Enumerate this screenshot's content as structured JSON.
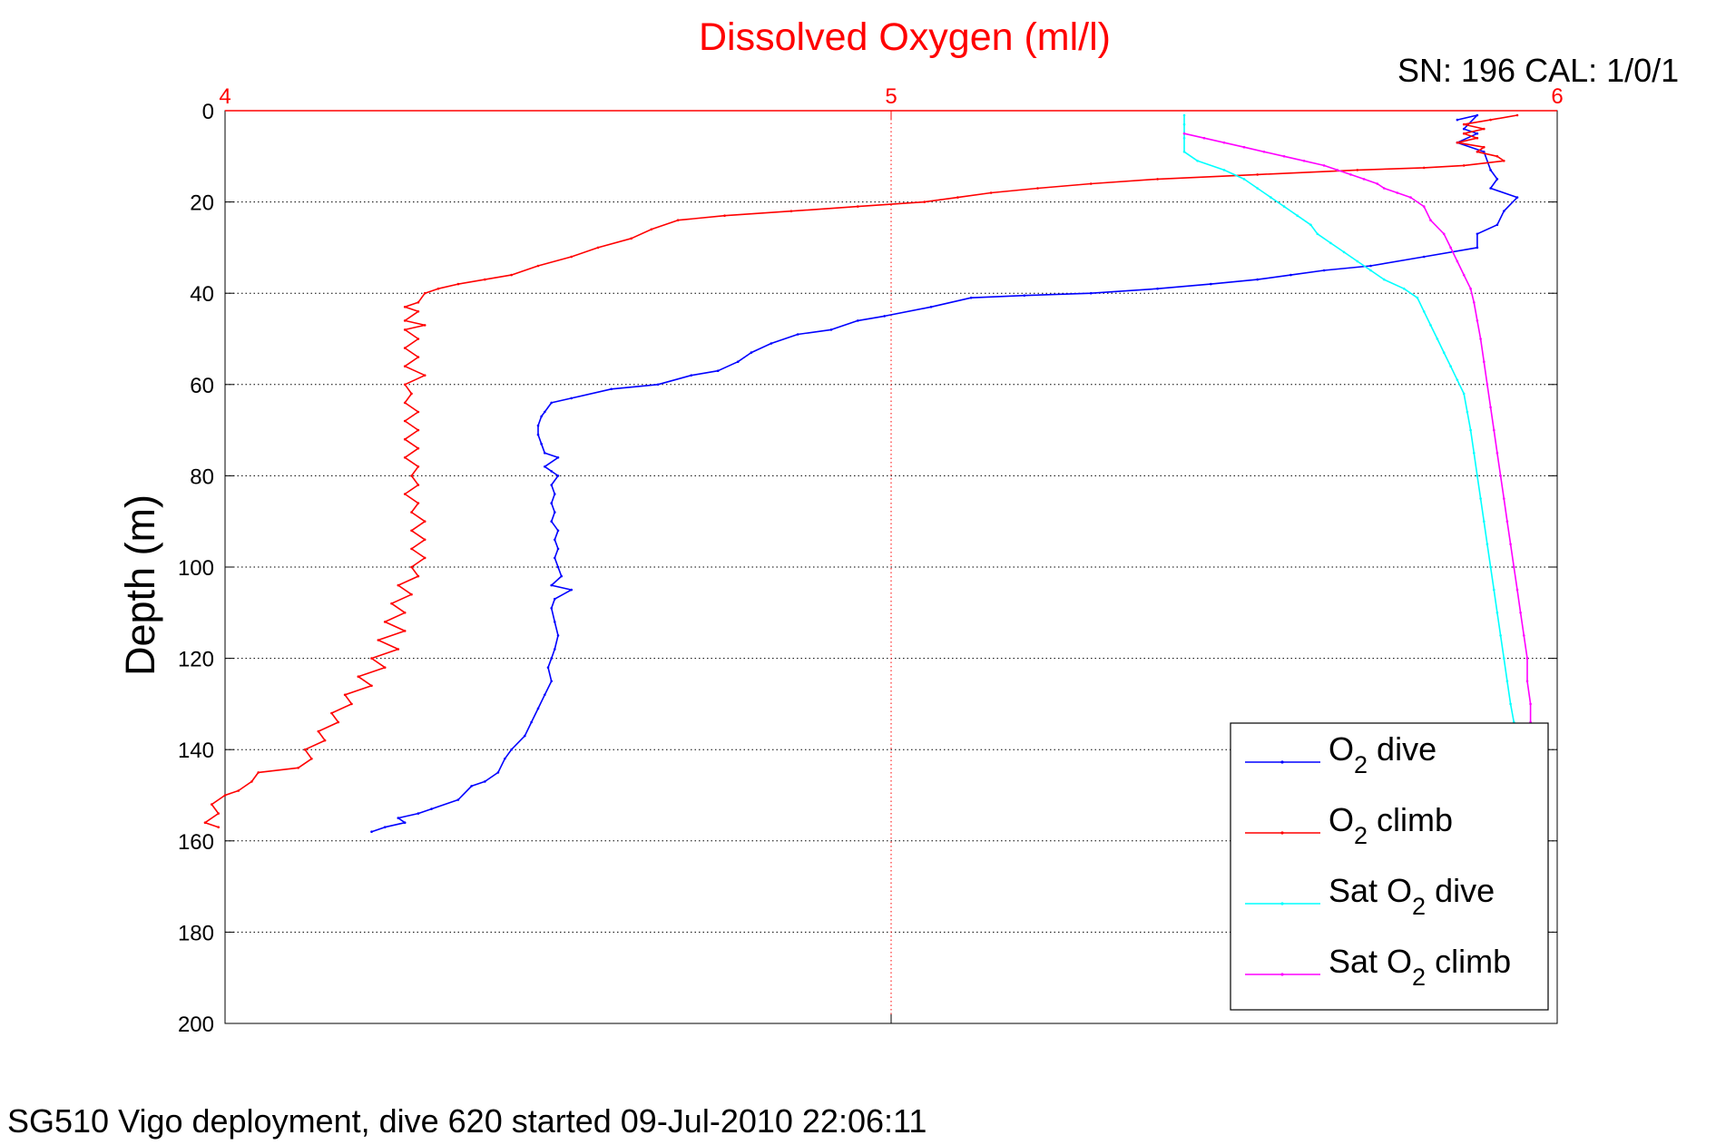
{
  "chart_data": {
    "type": "line",
    "title": "Dissolved Oxygen (ml/l)",
    "title_color": "#ff0000",
    "annotation_top_right": "SN: 196  CAL: 1/0/1",
    "footer": "SG510 Vigo deployment, dive 620 started 09-Jul-2010 22:06:11",
    "xlabel": "",
    "ylabel": "Depth (m)",
    "x_axis_position": "top",
    "x_axis_color": "#ff0000",
    "xlim": [
      4,
      6
    ],
    "ylim": [
      0,
      200
    ],
    "y_reversed": true,
    "xticks": [
      4,
      5,
      6
    ],
    "yticks": [
      0,
      20,
      40,
      60,
      80,
      100,
      120,
      140,
      160,
      180,
      200
    ],
    "grid": true,
    "legend_position": "bottom-right",
    "series": [
      {
        "legend_main": "O",
        "legend_sub": "2",
        "legend_tail": " dive",
        "color": "#0000ff",
        "points": [
          [
            5.85,
            2
          ],
          [
            5.88,
            1
          ],
          [
            5.86,
            4
          ],
          [
            5.88,
            5
          ],
          [
            5.85,
            7
          ],
          [
            5.89,
            9
          ],
          [
            5.9,
            13
          ],
          [
            5.91,
            15
          ],
          [
            5.9,
            17
          ],
          [
            5.94,
            19
          ],
          [
            5.92,
            22
          ],
          [
            5.91,
            25
          ],
          [
            5.88,
            27
          ],
          [
            5.88,
            30
          ],
          [
            5.8,
            32
          ],
          [
            5.72,
            34
          ],
          [
            5.65,
            35
          ],
          [
            5.6,
            36
          ],
          [
            5.55,
            37
          ],
          [
            5.48,
            38
          ],
          [
            5.4,
            39
          ],
          [
            5.3,
            40
          ],
          [
            5.2,
            40.5
          ],
          [
            5.12,
            41
          ],
          [
            5.06,
            43
          ],
          [
            4.99,
            45
          ],
          [
            4.95,
            46
          ],
          [
            4.91,
            48
          ],
          [
            4.86,
            49
          ],
          [
            4.82,
            51
          ],
          [
            4.79,
            53
          ],
          [
            4.77,
            55
          ],
          [
            4.74,
            57
          ],
          [
            4.7,
            58
          ],
          [
            4.65,
            60
          ],
          [
            4.58,
            61
          ],
          [
            4.52,
            63
          ],
          [
            4.49,
            64
          ],
          [
            4.48,
            66
          ],
          [
            4.475,
            67
          ],
          [
            4.47,
            69
          ],
          [
            4.47,
            71
          ],
          [
            4.475,
            73
          ],
          [
            4.48,
            75
          ],
          [
            4.5,
            76
          ],
          [
            4.48,
            78
          ],
          [
            4.49,
            79
          ],
          [
            4.5,
            80
          ],
          [
            4.49,
            82
          ],
          [
            4.495,
            84
          ],
          [
            4.49,
            86
          ],
          [
            4.495,
            88
          ],
          [
            4.49,
            90
          ],
          [
            4.5,
            92
          ],
          [
            4.495,
            94
          ],
          [
            4.5,
            96
          ],
          [
            4.495,
            98
          ],
          [
            4.5,
            100
          ],
          [
            4.505,
            102
          ],
          [
            4.49,
            104
          ],
          [
            4.52,
            105
          ],
          [
            4.495,
            107
          ],
          [
            4.49,
            109
          ],
          [
            4.495,
            112
          ],
          [
            4.5,
            115
          ],
          [
            4.495,
            118
          ],
          [
            4.49,
            120
          ],
          [
            4.485,
            122
          ],
          [
            4.49,
            125
          ],
          [
            4.48,
            128
          ],
          [
            4.47,
            131
          ],
          [
            4.46,
            134
          ],
          [
            4.45,
            137
          ],
          [
            4.43,
            140
          ],
          [
            4.42,
            142
          ],
          [
            4.41,
            145
          ],
          [
            4.39,
            147
          ],
          [
            4.37,
            148
          ],
          [
            4.35,
            151
          ],
          [
            4.31,
            153
          ],
          [
            4.29,
            154
          ],
          [
            4.26,
            155
          ],
          [
            4.27,
            156
          ],
          [
            4.24,
            157
          ],
          [
            4.22,
            158
          ]
        ]
      },
      {
        "legend_main": "O",
        "legend_sub": "2",
        "legend_tail": " climb",
        "color": "#ff0000",
        "points": [
          [
            5.94,
            1
          ],
          [
            5.9,
            2
          ],
          [
            5.86,
            3
          ],
          [
            5.89,
            4
          ],
          [
            5.86,
            5
          ],
          [
            5.88,
            6
          ],
          [
            5.85,
            7
          ],
          [
            5.89,
            8
          ],
          [
            5.88,
            9
          ],
          [
            5.91,
            10
          ],
          [
            5.92,
            11
          ],
          [
            5.86,
            12
          ],
          [
            5.8,
            12.5
          ],
          [
            5.7,
            13
          ],
          [
            5.55,
            14
          ],
          [
            5.4,
            15
          ],
          [
            5.3,
            16
          ],
          [
            5.22,
            17
          ],
          [
            5.15,
            18
          ],
          [
            5.1,
            19
          ],
          [
            5.05,
            20
          ],
          [
            4.95,
            21
          ],
          [
            4.85,
            22
          ],
          [
            4.75,
            23
          ],
          [
            4.68,
            24
          ],
          [
            4.64,
            26
          ],
          [
            4.61,
            28
          ],
          [
            4.56,
            30
          ],
          [
            4.52,
            32
          ],
          [
            4.47,
            34
          ],
          [
            4.43,
            36
          ],
          [
            4.39,
            37
          ],
          [
            4.35,
            38
          ],
          [
            4.32,
            39
          ],
          [
            4.3,
            40
          ],
          [
            4.29,
            42
          ],
          [
            4.27,
            43
          ],
          [
            4.29,
            44
          ],
          [
            4.27,
            46
          ],
          [
            4.3,
            47
          ],
          [
            4.27,
            48
          ],
          [
            4.29,
            50
          ],
          [
            4.27,
            52
          ],
          [
            4.29,
            54
          ],
          [
            4.27,
            56
          ],
          [
            4.3,
            58
          ],
          [
            4.27,
            60
          ],
          [
            4.28,
            62
          ],
          [
            4.27,
            64
          ],
          [
            4.29,
            66
          ],
          [
            4.27,
            68
          ],
          [
            4.29,
            70
          ],
          [
            4.27,
            72
          ],
          [
            4.29,
            74
          ],
          [
            4.27,
            76
          ],
          [
            4.29,
            78
          ],
          [
            4.28,
            80
          ],
          [
            4.29,
            82
          ],
          [
            4.27,
            84
          ],
          [
            4.29,
            86
          ],
          [
            4.28,
            88
          ],
          [
            4.3,
            90
          ],
          [
            4.28,
            92
          ],
          [
            4.3,
            94
          ],
          [
            4.28,
            96
          ],
          [
            4.3,
            98
          ],
          [
            4.28,
            100
          ],
          [
            4.29,
            102
          ],
          [
            4.26,
            104
          ],
          [
            4.28,
            106
          ],
          [
            4.25,
            108
          ],
          [
            4.27,
            110
          ],
          [
            4.24,
            112
          ],
          [
            4.27,
            114
          ],
          [
            4.23,
            116
          ],
          [
            4.26,
            118
          ],
          [
            4.22,
            120
          ],
          [
            4.24,
            122
          ],
          [
            4.2,
            124
          ],
          [
            4.22,
            126
          ],
          [
            4.18,
            128
          ],
          [
            4.19,
            130
          ],
          [
            4.16,
            132
          ],
          [
            4.17,
            134
          ],
          [
            4.14,
            136
          ],
          [
            4.15,
            138
          ],
          [
            4.12,
            140
          ],
          [
            4.13,
            142
          ],
          [
            4.11,
            144
          ],
          [
            4.05,
            145
          ],
          [
            4.04,
            147
          ],
          [
            4.02,
            149
          ],
          [
            4.0,
            150
          ],
          [
            3.98,
            152
          ],
          [
            3.99,
            154
          ],
          [
            3.97,
            156
          ],
          [
            3.99,
            157
          ]
        ]
      },
      {
        "legend_main": "Sat O",
        "legend_sub": "2",
        "legend_tail": " dive",
        "color": "#00ffff",
        "points": [
          [
            5.44,
            1
          ],
          [
            5.44,
            3
          ],
          [
            5.44,
            6
          ],
          [
            5.44,
            9
          ],
          [
            5.46,
            11
          ],
          [
            5.5,
            13
          ],
          [
            5.53,
            15
          ],
          [
            5.55,
            17
          ],
          [
            5.57,
            19
          ],
          [
            5.59,
            21
          ],
          [
            5.61,
            23
          ],
          [
            5.63,
            25
          ],
          [
            5.64,
            27
          ],
          [
            5.66,
            29
          ],
          [
            5.68,
            31
          ],
          [
            5.7,
            33
          ],
          [
            5.72,
            35
          ],
          [
            5.74,
            37
          ],
          [
            5.77,
            39
          ],
          [
            5.79,
            41
          ],
          [
            5.8,
            44
          ],
          [
            5.81,
            47
          ],
          [
            5.82,
            50
          ],
          [
            5.83,
            53
          ],
          [
            5.84,
            56
          ],
          [
            5.85,
            59
          ],
          [
            5.86,
            62
          ],
          [
            5.865,
            66
          ],
          [
            5.87,
            70
          ],
          [
            5.875,
            75
          ],
          [
            5.88,
            80
          ],
          [
            5.885,
            85
          ],
          [
            5.89,
            90
          ],
          [
            5.895,
            95
          ],
          [
            5.9,
            100
          ],
          [
            5.905,
            105
          ],
          [
            5.91,
            110
          ],
          [
            5.915,
            115
          ],
          [
            5.92,
            120
          ],
          [
            5.925,
            125
          ],
          [
            5.93,
            130
          ],
          [
            5.935,
            134
          ]
        ]
      },
      {
        "legend_main": "Sat O",
        "legend_sub": "2",
        "legend_tail": " climb",
        "color": "#ff00ff",
        "points": [
          [
            5.44,
            5
          ],
          [
            5.47,
            6
          ],
          [
            5.5,
            7
          ],
          [
            5.53,
            8
          ],
          [
            5.56,
            9
          ],
          [
            5.59,
            10
          ],
          [
            5.62,
            11
          ],
          [
            5.65,
            12
          ],
          [
            5.67,
            13
          ],
          [
            5.69,
            14
          ],
          [
            5.71,
            15
          ],
          [
            5.73,
            16
          ],
          [
            5.74,
            17
          ],
          [
            5.76,
            18
          ],
          [
            5.78,
            19
          ],
          [
            5.8,
            21
          ],
          [
            5.81,
            24
          ],
          [
            5.83,
            27
          ],
          [
            5.84,
            30
          ],
          [
            5.85,
            33
          ],
          [
            5.86,
            36
          ],
          [
            5.87,
            39
          ],
          [
            5.875,
            42
          ],
          [
            5.88,
            46
          ],
          [
            5.885,
            50
          ],
          [
            5.89,
            55
          ],
          [
            5.895,
            60
          ],
          [
            5.9,
            65
          ],
          [
            5.905,
            70
          ],
          [
            5.91,
            75
          ],
          [
            5.915,
            80
          ],
          [
            5.92,
            85
          ],
          [
            5.925,
            90
          ],
          [
            5.93,
            95
          ],
          [
            5.935,
            100
          ],
          [
            5.94,
            105
          ],
          [
            5.945,
            110
          ],
          [
            5.95,
            115
          ],
          [
            5.955,
            120
          ],
          [
            5.955,
            125
          ],
          [
            5.96,
            130
          ],
          [
            5.96,
            134
          ]
        ]
      }
    ]
  }
}
